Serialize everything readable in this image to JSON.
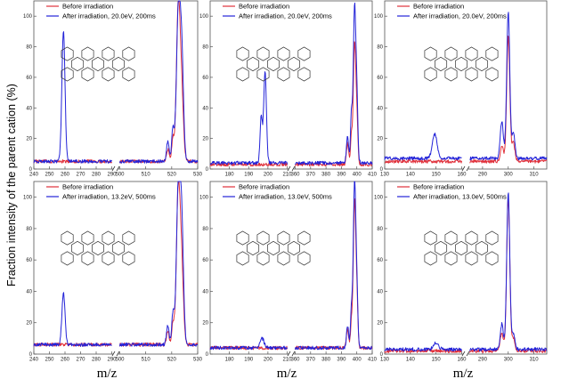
{
  "figure": {
    "ylabel": "Fraction intensity of the parent cation (%)",
    "xlabel": "m/z"
  },
  "colors": {
    "before": "#e0303a",
    "after": "#2323d8",
    "frame": "#555555"
  },
  "chart_data": [
    {
      "type": "line",
      "row": 0,
      "col": 0,
      "legend": [
        "Before irradiation",
        "After irradiation, 20.0eV, 200ms"
      ],
      "y_ticks": [
        0,
        20,
        40,
        60,
        80,
        100
      ],
      "ylim": [
        0,
        110
      ],
      "segments": [
        {
          "xlim": [
            240,
            290
          ],
          "ticks": [
            240,
            250,
            260,
            270,
            280,
            290
          ],
          "tick_labels": [
            "240",
            "250",
            "260",
            "270",
            "280",
            "290"
          ]
        },
        {
          "xlim": [
            500,
            530
          ],
          "ticks": [
            500,
            510,
            520,
            530
          ],
          "tick_labels": [
            "500",
            "510",
            "520",
            "530"
          ]
        }
      ],
      "series": [
        {
          "name": "Before irradiation",
          "baseline": 5,
          "peaks": [
            [
              518.5,
              8,
              0.5
            ],
            [
              520.5,
              15,
              0.5
            ],
            [
              522.5,
              98,
              0.7
            ],
            [
              523.8,
              45,
              0.7
            ]
          ]
        },
        {
          "name": "After irradiation, 20.0eV, 200ms",
          "baseline": 5,
          "peaks": [
            [
              259,
              86,
              1.0
            ],
            [
              518.5,
              13,
              0.5
            ],
            [
              520.5,
              22,
              0.5
            ],
            [
              522.5,
              92,
              0.7
            ],
            [
              523.8,
              72,
              0.7
            ]
          ]
        }
      ]
    },
    {
      "type": "line",
      "row": 0,
      "col": 1,
      "legend": [
        "Before irradiation",
        "After irradiation, 20.0eV, 200ms"
      ],
      "y_ticks": [
        0,
        20,
        40,
        60,
        80,
        100
      ],
      "ylim": [
        0,
        110
      ],
      "segments": [
        {
          "xlim": [
            170,
            210
          ],
          "ticks": [
            180,
            190,
            200,
            210
          ],
          "tick_labels": [
            "180",
            "190",
            "200",
            "210"
          ]
        },
        {
          "xlim": [
            360,
            410
          ],
          "ticks": [
            360,
            370,
            380,
            390,
            400,
            410
          ],
          "tick_labels": [
            "360",
            "370",
            "380",
            "390",
            "400",
            "410"
          ]
        }
      ],
      "series": [
        {
          "name": "Before irradiation",
          "baseline": 3,
          "peaks": [
            [
              394,
              14,
              0.7
            ],
            [
              396.5,
              18,
              0.6
            ],
            [
              398.5,
              78,
              0.8
            ],
            [
              400,
              28,
              0.7
            ]
          ]
        },
        {
          "name": "After irradiation, 20.0eV, 200ms",
          "baseline": 4,
          "peaks": [
            [
              196.5,
              30,
              0.6
            ],
            [
              198.5,
              60,
              0.7
            ],
            [
              394,
              18,
              0.7
            ],
            [
              396.5,
              32,
              0.6
            ],
            [
              398.5,
              100,
              0.8
            ],
            [
              400,
              40,
              0.7
            ]
          ]
        }
      ]
    },
    {
      "type": "line",
      "row": 0,
      "col": 2,
      "legend": [
        "Before irradiation",
        "After irradiation, 20.0eV, 200ms"
      ],
      "y_ticks": [
        0,
        20,
        40,
        60,
        80,
        100
      ],
      "ylim": [
        0,
        110
      ],
      "segments": [
        {
          "xlim": [
            130,
            160
          ],
          "ticks": [
            130,
            140,
            150,
            160
          ],
          "tick_labels": [
            "130",
            "140",
            "150",
            "160"
          ]
        },
        {
          "xlim": [
            285,
            315
          ],
          "ticks": [
            290,
            300,
            310
          ],
          "tick_labels": [
            "290",
            "300",
            "310"
          ]
        }
      ],
      "series": [
        {
          "name": "Before irradiation",
          "baseline": 5,
          "peaks": [
            [
              297.5,
              10,
              0.6
            ],
            [
              300,
              82,
              0.6
            ],
            [
              302,
              12,
              0.6
            ]
          ]
        },
        {
          "name": "After irradiation, 20.0eV, 200ms",
          "baseline": 7,
          "peaks": [
            [
              149.5,
              16,
              0.9
            ],
            [
              297.5,
              24,
              0.6
            ],
            [
              300,
              96,
              0.6
            ],
            [
              302,
              16,
              0.6
            ]
          ]
        }
      ]
    },
    {
      "type": "line",
      "row": 1,
      "col": 0,
      "legend": [
        "Before irradiation",
        "After irradiation, 13.2eV, 500ms"
      ],
      "y_ticks": [
        0,
        20,
        40,
        60,
        80,
        100
      ],
      "ylim": [
        0,
        110
      ],
      "segments": [
        {
          "xlim": [
            240,
            290
          ],
          "ticks": [
            240,
            250,
            260,
            270,
            280,
            290
          ],
          "tick_labels": [
            "240",
            "250",
            "260",
            "270",
            "280",
            "290"
          ]
        },
        {
          "xlim": [
            500,
            530
          ],
          "ticks": [
            500,
            510,
            520,
            530
          ],
          "tick_labels": [
            "500",
            "510",
            "520",
            "530"
          ]
        }
      ],
      "series": [
        {
          "name": "Before irradiation",
          "baseline": 6,
          "peaks": [
            [
              518.5,
              8,
              0.5
            ],
            [
              520.5,
              14,
              0.5
            ],
            [
              522.5,
              95,
              0.7
            ],
            [
              523.8,
              50,
              0.7
            ]
          ]
        },
        {
          "name": "After irradiation, 13.2eV, 500ms",
          "baseline": 6,
          "peaks": [
            [
              259,
              33,
              1.0
            ],
            [
              518.5,
              12,
              0.5
            ],
            [
              520.5,
              20,
              0.5
            ],
            [
              522.5,
              96,
              0.7
            ],
            [
              523.8,
              78,
              0.7
            ]
          ]
        }
      ]
    },
    {
      "type": "line",
      "row": 1,
      "col": 1,
      "legend": [
        "Before irradiation",
        "After irradiation, 13.0eV, 500ms"
      ],
      "y_ticks": [
        0,
        20,
        40,
        60,
        80,
        100
      ],
      "ylim": [
        0,
        110
      ],
      "segments": [
        {
          "xlim": [
            170,
            210
          ],
          "ticks": [
            180,
            190,
            200,
            210
          ],
          "tick_labels": [
            "180",
            "190",
            "200",
            "210"
          ]
        },
        {
          "xlim": [
            360,
            410
          ],
          "ticks": [
            360,
            370,
            380,
            390,
            400,
            410
          ],
          "tick_labels": [
            "360",
            "370",
            "380",
            "390",
            "400",
            "410"
          ]
        }
      ],
      "series": [
        {
          "name": "Before irradiation",
          "baseline": 4,
          "peaks": [
            [
              394,
              12,
              0.7
            ],
            [
              396.5,
              16,
              0.6
            ],
            [
              398.5,
              92,
              0.8
            ],
            [
              400,
              30,
              0.7
            ]
          ]
        },
        {
          "name": "After irradiation, 13.0eV, 500ms",
          "baseline": 4,
          "peaks": [
            [
              197,
              6,
              1.0
            ],
            [
              394,
              14,
              0.7
            ],
            [
              396.5,
              25,
              0.6
            ],
            [
              398.5,
              104,
              0.8
            ],
            [
              400,
              35,
              0.7
            ]
          ]
        }
      ]
    },
    {
      "type": "line",
      "row": 1,
      "col": 2,
      "legend": [
        "Before irradiation",
        "After irradiation, 13.0eV, 500ms"
      ],
      "y_ticks": [
        0,
        20,
        40,
        60,
        80,
        100
      ],
      "ylim": [
        0,
        110
      ],
      "segments": [
        {
          "xlim": [
            130,
            160
          ],
          "ticks": [
            130,
            140,
            150,
            160
          ],
          "tick_labels": [
            "130",
            "140",
            "150",
            "160"
          ]
        },
        {
          "xlim": [
            285,
            315
          ],
          "ticks": [
            290,
            300,
            310
          ],
          "tick_labels": [
            "290",
            "300",
            "310"
          ]
        }
      ],
      "series": [
        {
          "name": "Before irradiation",
          "baseline": 2,
          "peaks": [
            [
              297.5,
              12,
              0.6
            ],
            [
              300,
              98,
              0.6
            ],
            [
              302,
              8,
              0.6
            ]
          ]
        },
        {
          "name": "After irradiation, 13.0eV, 500ms",
          "baseline": 3,
          "peaks": [
            [
              150,
              4,
              1.0
            ],
            [
              297.5,
              16,
              0.6
            ],
            [
              300,
              100,
              0.6
            ],
            [
              302,
              10,
              0.6
            ]
          ]
        }
      ]
    }
  ]
}
